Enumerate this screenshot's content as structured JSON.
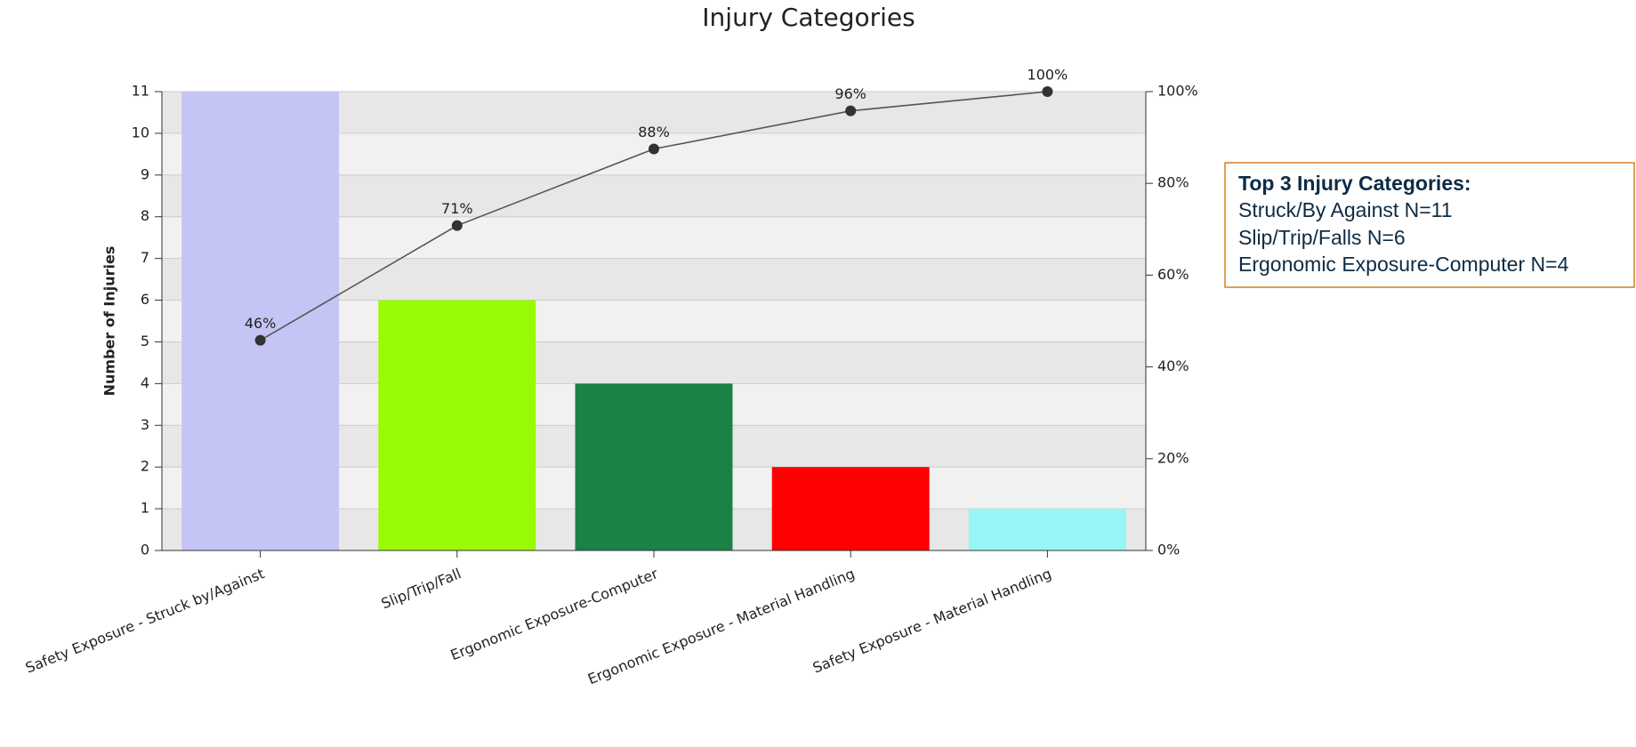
{
  "chart_data": {
    "type": "bar",
    "title": "Injury Categories",
    "ylabel": "Number of Injuries",
    "categories": [
      "Safety Exposure - Struck by/Against",
      "Slip/Trip/Fall",
      "Ergonomic Exposure-Computer",
      "Ergonomic Exposure - Material Handling",
      "Safety Exposure - Material Handling"
    ],
    "values": [
      11,
      6,
      4,
      2,
      1
    ],
    "colors": [
      "#c5c5f5",
      "#99fa05",
      "#1b8245",
      "#ff0000",
      "#98f5f5"
    ],
    "ylim": [
      0,
      11
    ],
    "yticks": [
      0,
      1,
      2,
      3,
      4,
      5,
      6,
      7,
      8,
      9,
      10,
      11
    ],
    "y2lim": [
      0,
      100
    ],
    "y2ticks": [
      {
        "value": 0,
        "label": "0%"
      },
      {
        "value": 20,
        "label": "20%"
      },
      {
        "value": 40,
        "label": "40%"
      },
      {
        "value": 60,
        "label": "60%"
      },
      {
        "value": 80,
        "label": "80%"
      },
      {
        "value": 100,
        "label": "100%"
      }
    ],
    "line": {
      "type": "line",
      "axis": "y2",
      "color": "#555555",
      "values": [
        45.8,
        70.8,
        87.5,
        95.8,
        100
      ],
      "value_labels": [
        "46%",
        "71%",
        "88%",
        "96%",
        "100%"
      ]
    },
    "annotation": {
      "title": "Top 3 Injury Categories:",
      "lines": [
        "Struck/By Against N=11",
        "Slip/Trip/Falls N=6",
        "Ergonomic Exposure-Computer N=4"
      ]
    }
  }
}
